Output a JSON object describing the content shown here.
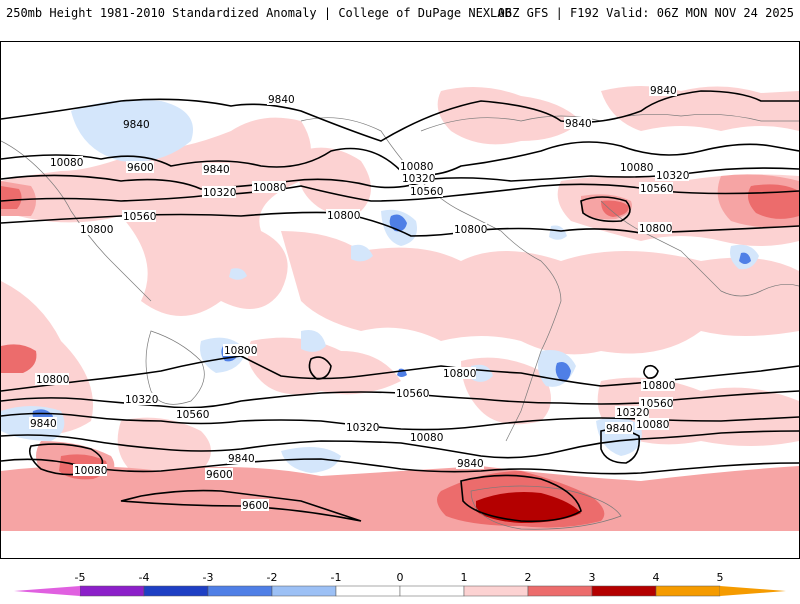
{
  "header": {
    "title": "250mb Height 1981-2010 Standardized Anomaly | College of DuPage NEXLAB",
    "run_info": "06Z GFS | F192 Valid: 06Z MON NOV 24 2025"
  },
  "map": {
    "contour_labels": {
      "c1": "9840",
      "c2": "9840",
      "c3": "9840",
      "c4": "10080",
      "c5": "9600",
      "c6": "9840",
      "c7": "10080",
      "c8": "10320",
      "c9": "10560",
      "c10": "10800",
      "c11": "10800",
      "c12": "10080",
      "c13": "10320",
      "c14": "10560",
      "c15": "10800",
      "c16": "10080",
      "c17": "10320",
      "c18": "10560",
      "c19": "10800",
      "c20": "10800",
      "c21": "10800",
      "c22": "10320",
      "c23": "10560",
      "c24": "9840",
      "c25": "10560",
      "c26": "10320",
      "c27": "10080",
      "c28": "9840",
      "c29": "10800",
      "c30": "10560",
      "c31": "10320",
      "c32": "10080",
      "c33": "9840",
      "c34": "10080",
      "c35": "9840",
      "c36": "9600",
      "c37": "9600",
      "c38": "10800",
      "c39": "9840"
    },
    "colors": {
      "neg5": "#e060e0",
      "neg4": "#8c1fc9",
      "neg3": "#1e3fc4",
      "neg2": "#4f7fe6",
      "neg1": "#9cc0f5",
      "neg05": "#d4e6fb",
      "pos05": "#fcd2d2",
      "pos1": "#f6a4a4",
      "pos2": "#ec6c6c",
      "pos3": "#d42424",
      "pos4": "#b40000",
      "pos5": "#f59b00"
    }
  },
  "colorbar": {
    "ticks": [
      "-5",
      "-4",
      "-3",
      "-2",
      "-1",
      "0",
      "1",
      "2",
      "3",
      "4",
      "5"
    ]
  }
}
